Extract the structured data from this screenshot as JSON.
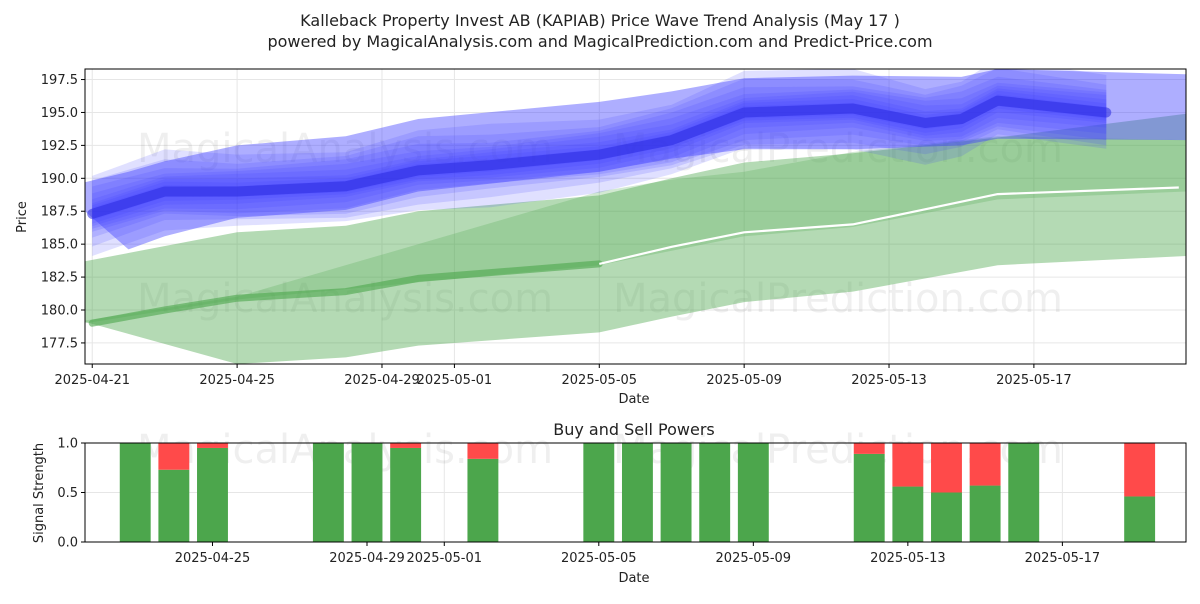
{
  "title_line1": "Kalleback Property Invest AB (KAPIAB) Price Wave Trend Analysis (May 17 )",
  "title_line2": "powered by MagicalAnalysis.com and MagicalPrediction.com and Predict-Price.com",
  "watermarks": [
    "MagicalAnalysis.com",
    "MagicalPrediction.com"
  ],
  "colors": {
    "blue_band": "#3f3fff",
    "green_band": "#4ca64c",
    "trend_line": "#ffffff",
    "buy_bar": "#4ca64c",
    "sell_bar": "#ff4a4a",
    "grid": "#e6e6e6"
  },
  "chart_data": [
    {
      "type": "area",
      "xlabel": "Date",
      "ylabel": "Price",
      "ylim": [
        175.9,
        198.3
      ],
      "xlim": [
        "2025-04-20.8",
        "2025-05-21.2"
      ],
      "x_ticks": [
        "2025-04-21",
        "2025-04-25",
        "2025-04-29",
        "2025-05-01",
        "2025-05-05",
        "2025-05-09",
        "2025-05-13",
        "2025-05-17"
      ],
      "y_ticks": [
        "177.5",
        "180.0",
        "182.5",
        "185.0",
        "187.5",
        "190.0",
        "192.5",
        "195.0",
        "197.5"
      ],
      "grid": true,
      "series": [
        {
          "kind": "blue-wave-center",
          "x": [
            "2025-04-21",
            "2025-04-23",
            "2025-04-25",
            "2025-04-28",
            "2025-04-30",
            "2025-05-02",
            "2025-05-05",
            "2025-05-07",
            "2025-05-09",
            "2025-05-12",
            "2025-05-14",
            "2025-05-15",
            "2025-05-16",
            "2025-05-19"
          ],
          "values": [
            187.3,
            189.0,
            189.0,
            189.4,
            190.6,
            191.0,
            191.8,
            192.9,
            195.0,
            195.3,
            194.2,
            194.5,
            195.9,
            195.0
          ]
        },
        {
          "kind": "blue-wave-outer",
          "x": [
            "2025-04-20.8",
            "2025-04-22",
            "2025-04-23",
            "2025-04-25",
            "2025-04-28",
            "2025-04-30",
            "2025-05-05",
            "2025-05-07",
            "2025-05-09",
            "2025-05-12",
            "2025-05-15",
            "2025-05-16",
            "2025-05-21.2"
          ],
          "upper": [
            189.7,
            190.5,
            191.3,
            192.5,
            193.2,
            194.5,
            195.8,
            196.6,
            197.6,
            197.8,
            197.7,
            198.3,
            197.9
          ],
          "lower": [
            187.5,
            184.6,
            185.6,
            187.0,
            187.6,
            189.0,
            190.5,
            191.5,
            192.2,
            192.2,
            192.5,
            193.0,
            192.9
          ]
        },
        {
          "kind": "green-wide-band",
          "x": [
            "2025-04-20.8",
            "2025-04-25",
            "2025-04-28",
            "2025-04-30",
            "2025-05-05",
            "2025-05-07",
            "2025-05-09",
            "2025-05-12",
            "2025-05-16",
            "2025-05-21.2"
          ],
          "upper": [
            183.7,
            185.9,
            186.4,
            187.5,
            188.7,
            190.0,
            191.2,
            191.9,
            193.1,
            194.9
          ],
          "lower": [
            179.1,
            175.9,
            176.4,
            177.3,
            178.3,
            179.5,
            180.6,
            181.4,
            183.4,
            184.1
          ]
        },
        {
          "kind": "green-narrow-band",
          "x": [
            "2025-04-20.8",
            "2025-04-25",
            "2025-05-05",
            "2025-05-07",
            "2025-05-09",
            "2025-05-12",
            "2025-05-16",
            "2025-05-21.2"
          ],
          "upper": [
            179.2,
            181.0,
            189.0,
            189.9,
            190.5,
            192.0,
            193.2,
            192.9
          ],
          "lower": [
            179.0,
            180.8,
            183.4,
            184.5,
            185.6,
            186.3,
            188.4,
            189.0
          ]
        },
        {
          "kind": "trend-line",
          "x": [
            "2025-04-21",
            "2025-04-23",
            "2025-04-25",
            "2025-04-28",
            "2025-04-30",
            "2025-05-05",
            "2025-05-07",
            "2025-05-09",
            "2025-05-12",
            "2025-05-16",
            "2025-05-21"
          ],
          "values": [
            179.0,
            180.0,
            180.9,
            181.4,
            182.4,
            183.5,
            184.8,
            185.9,
            186.5,
            188.8,
            189.3
          ]
        }
      ]
    },
    {
      "type": "bar",
      "title": "Buy and Sell Powers",
      "xlabel": "Date",
      "ylabel": "Signal Strength",
      "ylim": [
        0,
        1
      ],
      "y_ticks": [
        "0.0",
        "0.5",
        "1.0"
      ],
      "x_ticks": [
        "2025-04-25",
        "2025-04-29",
        "2025-05-01",
        "2025-05-05",
        "2025-05-09",
        "2025-05-13",
        "2025-05-17"
      ],
      "categories": [
        "2025-04-23",
        "2025-04-24",
        "2025-04-25",
        "2025-04-28",
        "2025-04-29",
        "2025-04-30",
        "2025-05-02",
        "2025-05-05",
        "2025-05-06",
        "2025-05-07",
        "2025-05-08",
        "2025-05-09",
        "2025-05-12",
        "2025-05-13",
        "2025-05-14",
        "2025-05-15",
        "2025-05-16",
        "2025-05-19"
      ],
      "series": [
        {
          "values": [
            1.0,
            0.73,
            0.95,
            1.0,
            1.0,
            0.95,
            0.84,
            1.0,
            1.0,
            1.0,
            1.0,
            1.0,
            0.89,
            0.56,
            0.5,
            0.57,
            1.0,
            0.46
          ]
        },
        {
          "values": [
            0.0,
            0.27,
            0.05,
            0.0,
            0.0,
            0.05,
            0.16,
            0.0,
            0.0,
            0.0,
            0.0,
            0.0,
            0.11,
            0.44,
            0.5,
            0.43,
            0.0,
            0.54
          ]
        }
      ]
    }
  ]
}
